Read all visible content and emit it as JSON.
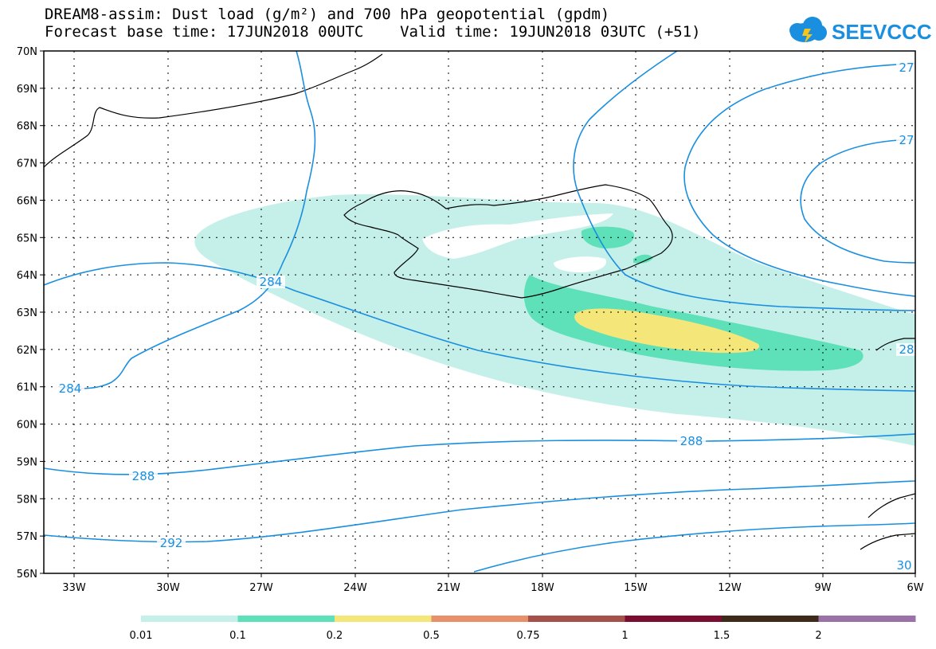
{
  "header": {
    "title_line1": "DREAM8-assim: Dust load (g/m²) and 700 hPa geopotential (gpdm)",
    "title_line2": "Forecast base time: 17JUN2018 00UTC    Valid time: 19JUN2018 03UTC (+51)"
  },
  "logo": {
    "text": "SEEVCCC",
    "icon": "cloud-icon",
    "color": "#1a8fe0"
  },
  "map": {
    "lon_ticks": [
      "33W",
      "30W",
      "27W",
      "24W",
      "21W",
      "18W",
      "15W",
      "12W",
      "9W",
      "6W"
    ],
    "lat_ticks": [
      "70N",
      "69N",
      "68N",
      "67N",
      "66N",
      "65N",
      "64N",
      "63N",
      "62N",
      "61N",
      "60N",
      "59N",
      "58N",
      "57N",
      "56N"
    ],
    "contour_labels": [
      {
        "text": "284"
      },
      {
        "text": "284"
      },
      {
        "text": "288"
      },
      {
        "text": "288"
      },
      {
        "text": "292"
      },
      {
        "text": "28"
      },
      {
        "text": "27"
      },
      {
        "text": "27"
      },
      {
        "text": "30"
      }
    ],
    "contour_color": "#1a8fe0"
  },
  "colorbar": {
    "tick_labels": [
      "0.01",
      "0.1",
      "0.2",
      "0.5",
      "0.75",
      "1",
      "1.5",
      "2"
    ],
    "colors": [
      "#c5f0ea",
      "#5ee0b8",
      "#f5e67a",
      "#e8906a",
      "#a5504a",
      "#7d0d30",
      "#3d2a18",
      "#9a72a8"
    ]
  }
}
